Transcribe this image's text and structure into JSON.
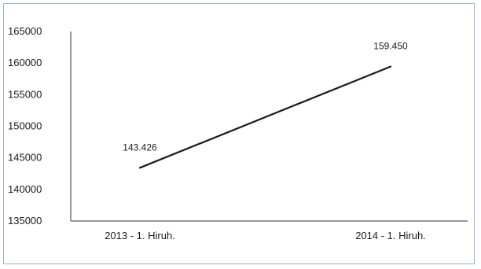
{
  "chart_data": {
    "type": "line",
    "title": "",
    "xlabel": "",
    "ylabel": "",
    "categories": [
      "2013 - 1. Hiruh.",
      "2014 - 1. Hiruh."
    ],
    "series": [
      {
        "values": [
          143426,
          159450
        ],
        "data_labels": [
          "143.426",
          "159.450"
        ],
        "color": "#1a1a1a"
      }
    ],
    "ylim": [
      135000,
      165000
    ],
    "yticks": [
      {
        "value": 165000,
        "label": "165000"
      },
      {
        "value": 160000,
        "label": "160000"
      },
      {
        "value": 155000,
        "label": "155000"
      },
      {
        "value": 150000,
        "label": "150000"
      },
      {
        "value": 145000,
        "label": "145000"
      },
      {
        "value": 140000,
        "label": "140000"
      },
      {
        "value": 135000,
        "label": "135000"
      }
    ],
    "grid": false,
    "legend": "none"
  }
}
